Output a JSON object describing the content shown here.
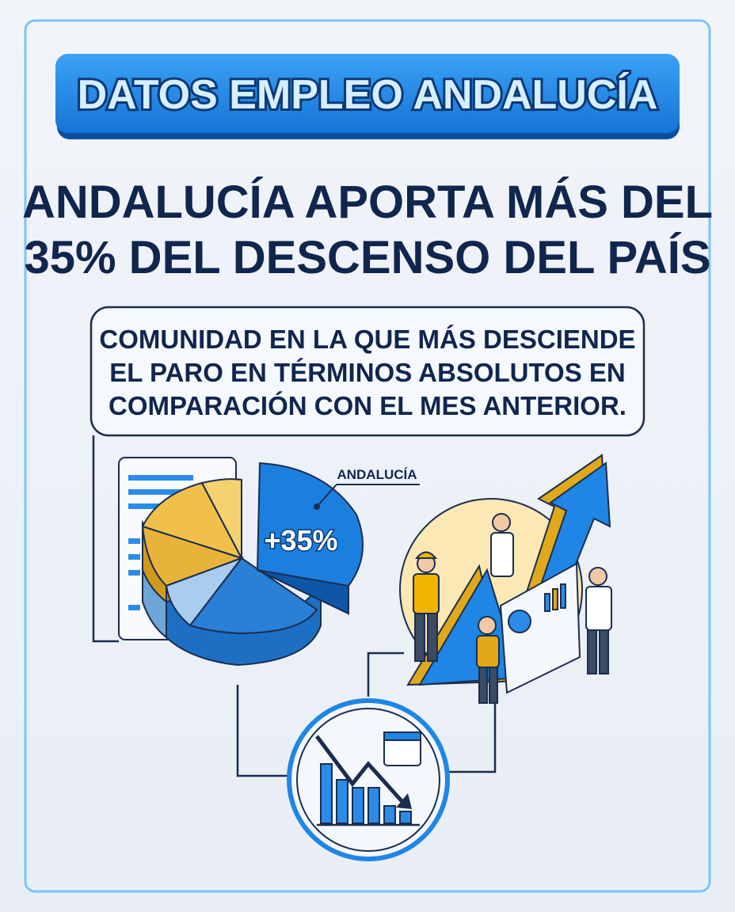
{
  "header": {
    "title": "DATOS EMPLEO ANDALUCÍA"
  },
  "headline": {
    "lines": [
      "ANDALUCÍA APORTA MÁS DEL",
      "35% DEL DESCENSO DEL PAÍS"
    ]
  },
  "callout": {
    "lines": [
      "COMUNIDAD EN LA QUE MÁS DESCIENDE",
      "EL PARO EN TÉRMINOS ABSOLUTOS EN",
      "COMPARACIÓN CON EL MES ANTERIOR."
    ]
  },
  "illustration": {
    "region_label": "ANDALUCÍA",
    "share_label": "+35%"
  }
}
